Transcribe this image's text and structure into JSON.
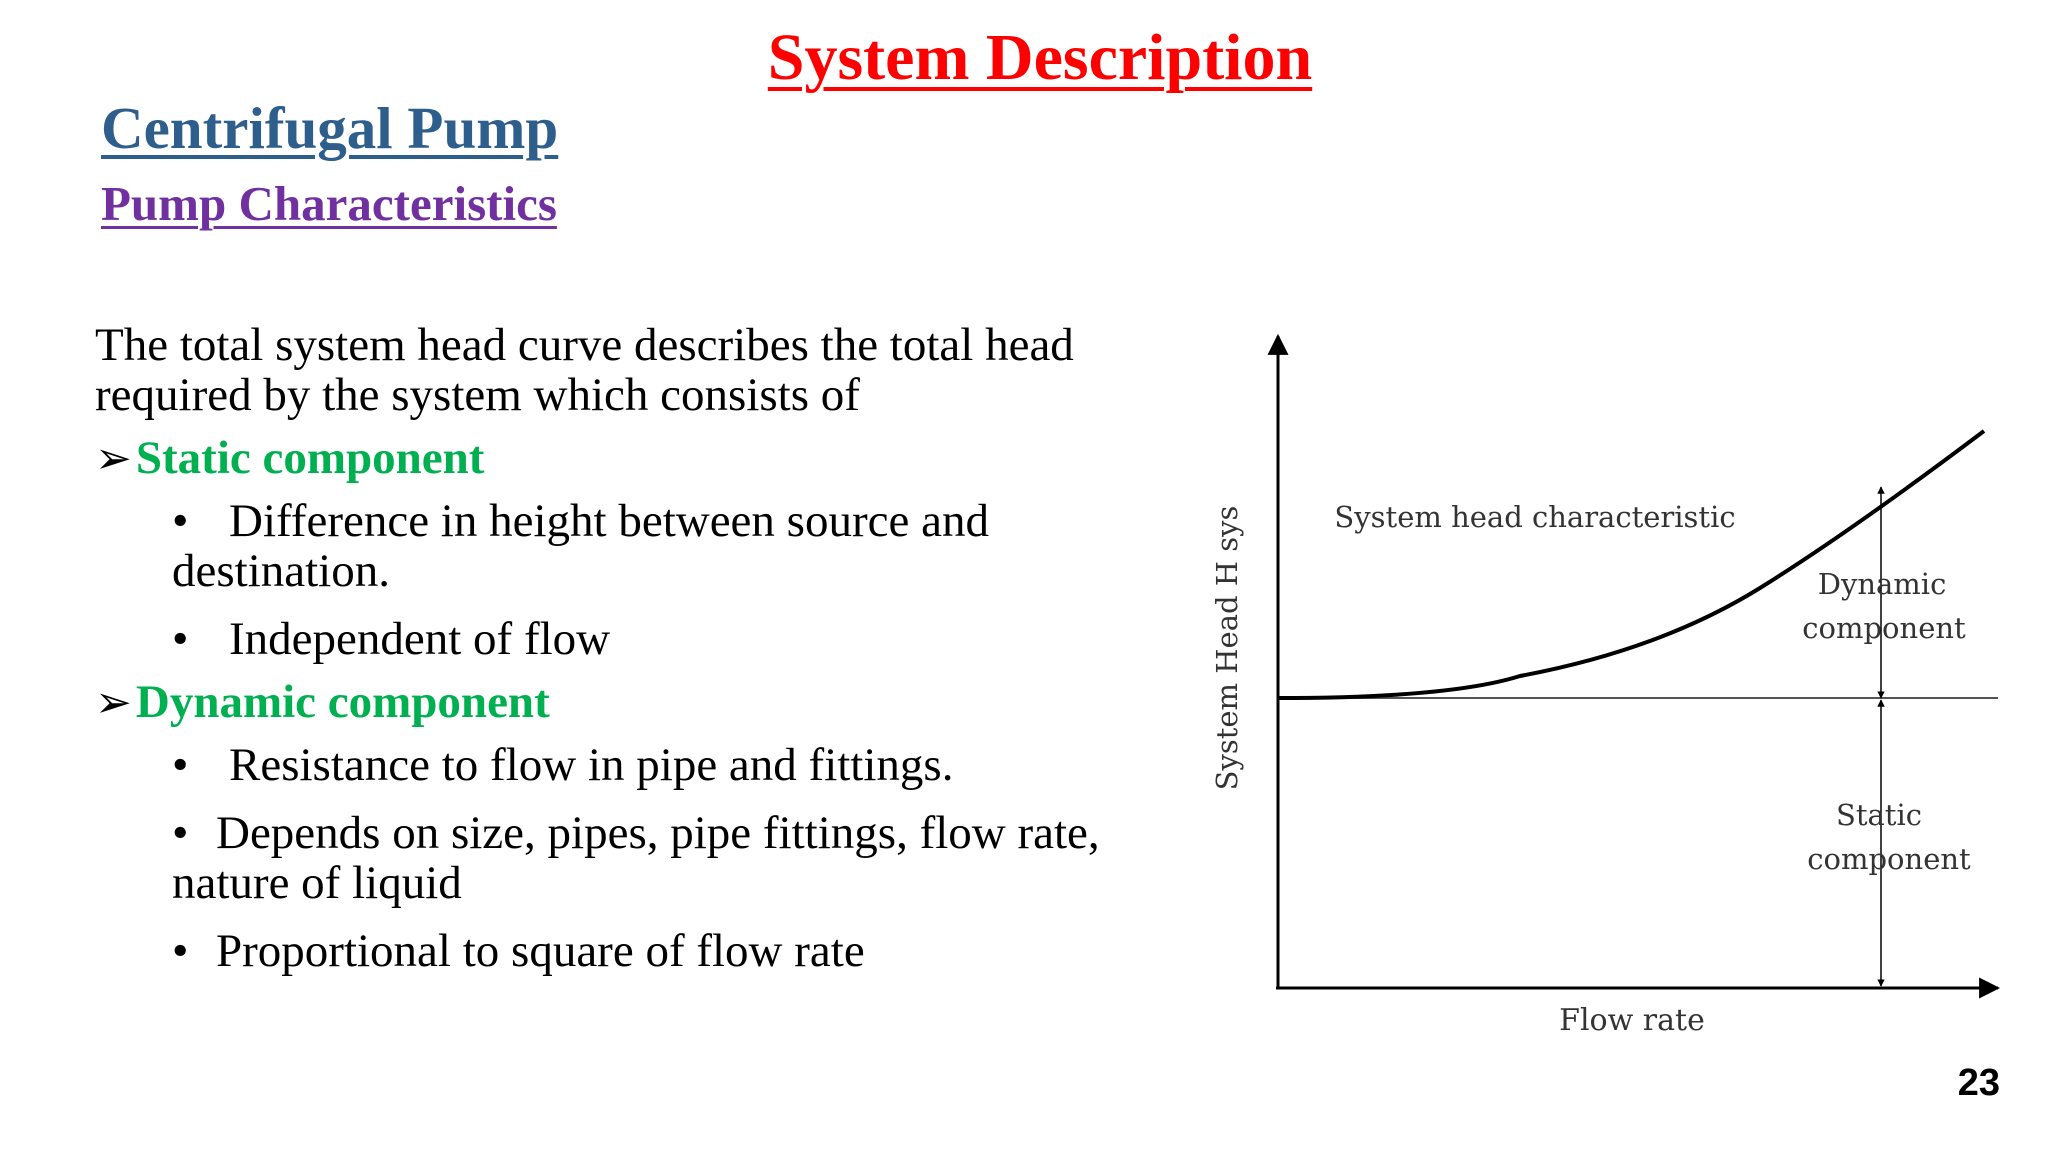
{
  "slide": {
    "title": "System Description",
    "section": "Centrifugal Pump",
    "subsection": "Pump Characteristics",
    "page_number": "23"
  },
  "content": {
    "intro_line1": "The total system head curve describes the total head",
    "intro_line2": "required by the system which consists of",
    "components": [
      {
        "heading": "Static component",
        "points": [
          "Difference in height between source and",
          "destination.",
          "Independent of flow"
        ]
      },
      {
        "heading": "Dynamic component",
        "points": [
          "Resistance to flow in pipe and fittings.",
          "Depends on size, pipes, pipe fittings, flow rate,",
          "nature of liquid",
          "Proportional to square of flow rate"
        ]
      }
    ],
    "bullet_char": "•",
    "arrow_char": "➢"
  },
  "figure": {
    "y_axis_label": "System Head H sys",
    "x_axis_label": "Flow rate",
    "curve_label": "System head characteristic",
    "dynamic_label_line1": "Dynamic",
    "dynamic_label_line2": "component",
    "static_label_line1": "Static",
    "static_label_line2": "component",
    "line_color": "#000000",
    "text_color": "#333333"
  }
}
